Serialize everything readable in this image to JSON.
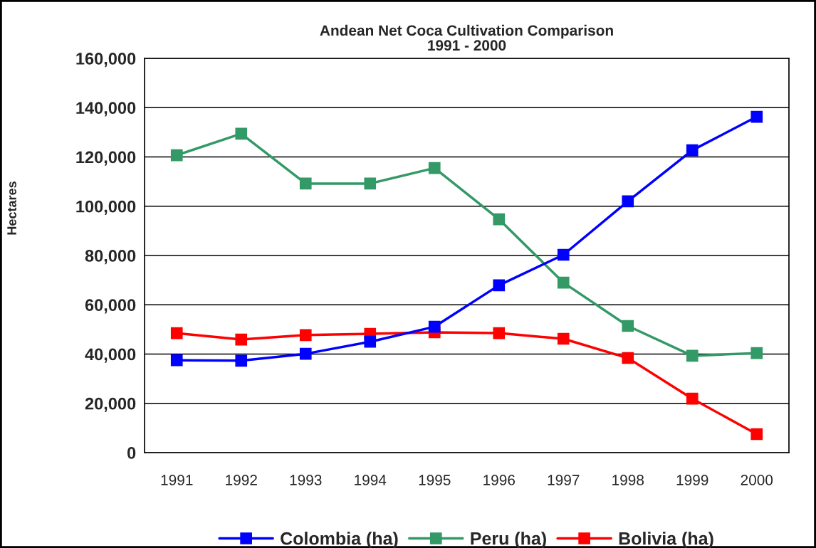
{
  "chart_data": {
    "type": "line",
    "title": "Andean Net Coca Cultivation Comparison\n1991 - 2000",
    "ylabel": "Hectares",
    "categories": [
      "1991",
      "1992",
      "1993",
      "1994",
      "1995",
      "1996",
      "1997",
      "1998",
      "1999",
      "2000"
    ],
    "series": [
      {
        "name": "Colombia (ha)",
        "color": "#0000ff",
        "values": [
          37500,
          37300,
          40100,
          45000,
          51100,
          67900,
          80300,
          102000,
          122700,
          136300
        ]
      },
      {
        "name": "Peru (ha)",
        "color": "#339966",
        "values": [
          120700,
          129400,
          109200,
          109200,
          115500,
          94700,
          69000,
          51400,
          39300,
          40400
        ]
      },
      {
        "name": "Bolivia (ha)",
        "color": "#ff0000",
        "values": [
          48500,
          45900,
          47700,
          48200,
          48800,
          48500,
          46200,
          38400,
          21900,
          7500
        ]
      }
    ],
    "ylim": [
      0,
      160000
    ],
    "yticks": [
      {
        "value": 0,
        "label": "0"
      },
      {
        "value": 20000,
        "label": "20,000"
      },
      {
        "value": 40000,
        "label": "40,000"
      },
      {
        "value": 60000,
        "label": "60,000"
      },
      {
        "value": 80000,
        "label": "80,000"
      },
      {
        "value": 100000,
        "label": "100,000"
      },
      {
        "value": 120000,
        "label": "120,000"
      },
      {
        "value": 140000,
        "label": "140,000"
      },
      {
        "value": 160000,
        "label": "160,000"
      }
    ],
    "grid": "y",
    "legend": "bottom",
    "marker": "square",
    "line_style": "solid"
  }
}
